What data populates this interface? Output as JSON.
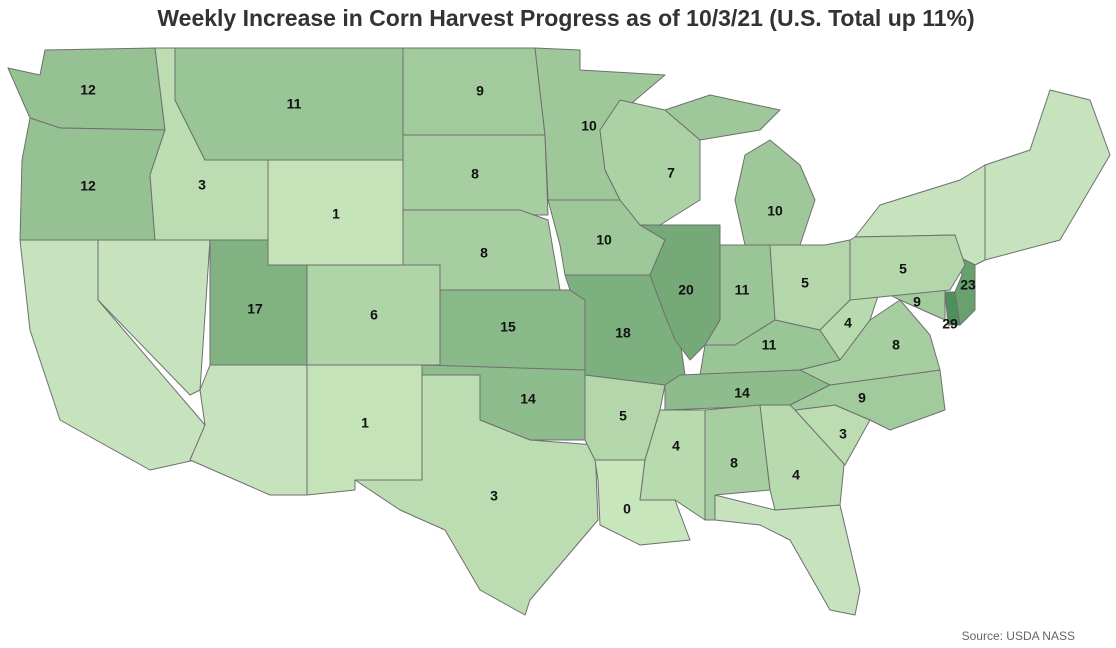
{
  "chart_data": {
    "type": "choropleth",
    "title": "Weekly Increase in Corn Harvest Progress as of 10/3/21 (U.S. Total up 11%)",
    "values": [
      12,
      12,
      3,
      11,
      9,
      8,
      1,
      8,
      6,
      17,
      15,
      14,
      3,
      1,
      10,
      10,
      18,
      5,
      0,
      7,
      20,
      10,
      11,
      5,
      11,
      14,
      4,
      8,
      4,
      3,
      9,
      8,
      4,
      9,
      29,
      23,
      5
    ],
    "color_low": "#c8e6bb",
    "color_high": "#4f8f5a",
    "source": "Source: USDA NASS"
  }
}
